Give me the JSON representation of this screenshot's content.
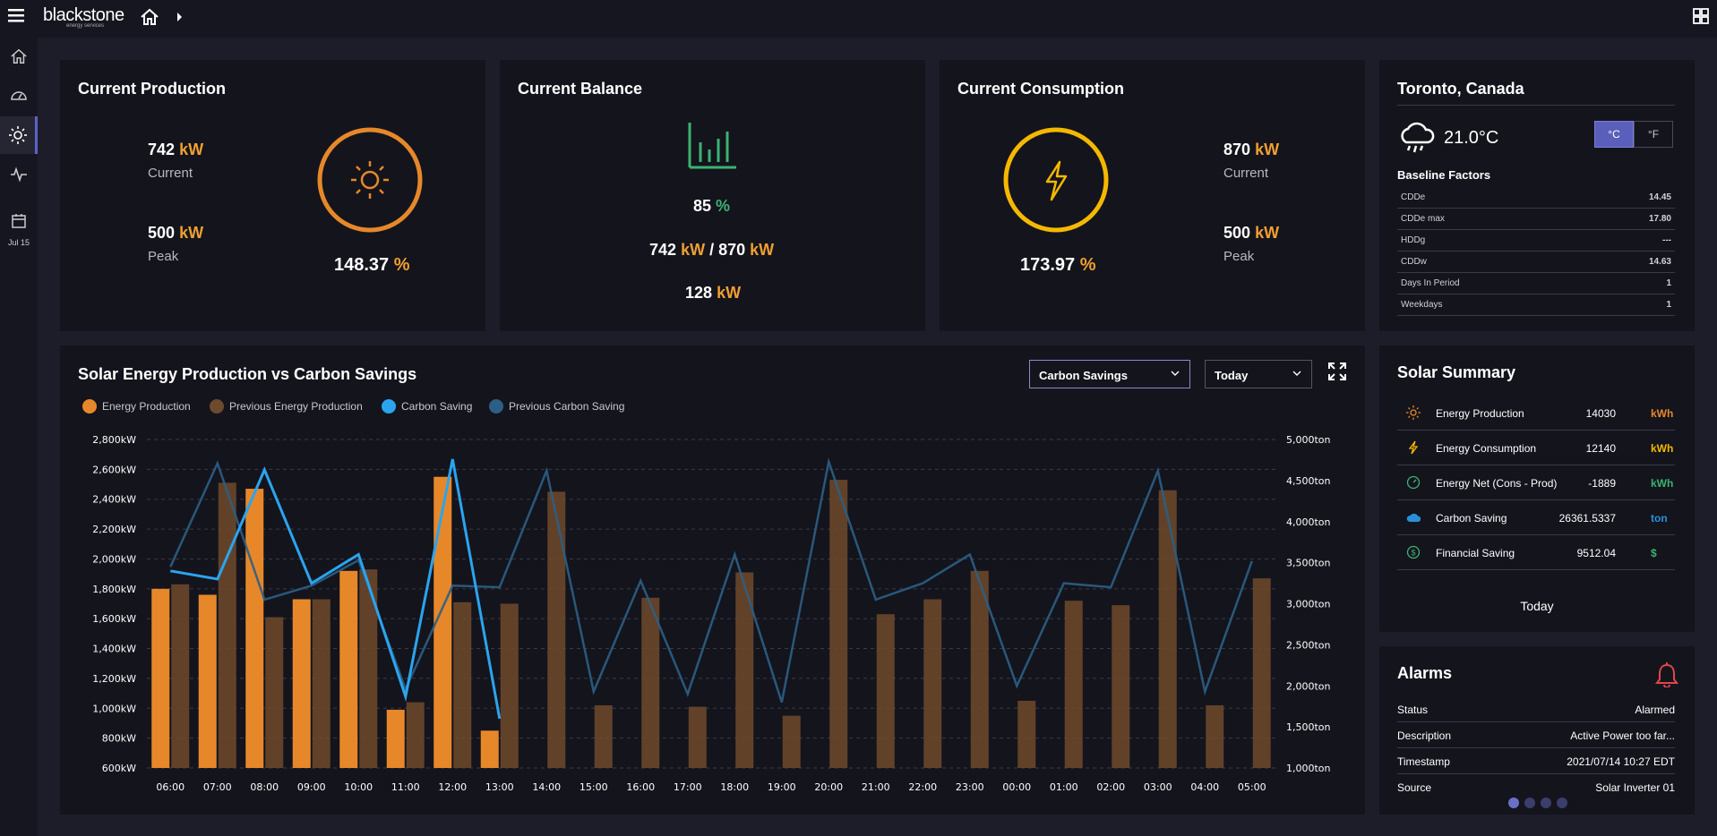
{
  "brand": {
    "name": "blackstone",
    "tagline": "energy services"
  },
  "sidebar": {
    "date_label": "Jul 15"
  },
  "production": {
    "title": "Current Production",
    "current_value": "742",
    "current_unit": "kW",
    "current_label": "Current",
    "peak_value": "500",
    "peak_unit": "kW",
    "peak_label": "Peak",
    "percent": "148.37",
    "percent_unit": "%",
    "color": "#e6882a"
  },
  "balance": {
    "title": "Current Balance",
    "percent": "85",
    "percent_unit": "%",
    "prod_value": "742",
    "prod_unit": "kW",
    "separator": "/",
    "cons_value": "870",
    "cons_unit": "kW",
    "net_value": "128",
    "net_unit": "kW",
    "color": "#3cb371"
  },
  "consumption": {
    "title": "Current Consumption",
    "current_value": "870",
    "current_unit": "kW",
    "current_label": "Current",
    "peak_value": "500",
    "peak_unit": "kW",
    "peak_label": "Peak",
    "percent": "173.97",
    "percent_unit": "%",
    "color": "#f5b800"
  },
  "weather": {
    "location": "Toronto, Canada",
    "temperature": "21.0°C",
    "unit_c": "°C",
    "unit_f": "°F",
    "baseline_title": "Baseline Factors",
    "factors": [
      {
        "label": "CDDe",
        "value": "14.45"
      },
      {
        "label": "CDDe max",
        "value": "17.80"
      },
      {
        "label": "HDDg",
        "value": "---"
      },
      {
        "label": "CDDw",
        "value": "14.63"
      },
      {
        "label": "Days In Period",
        "value": "1"
      },
      {
        "label": "Weekdays",
        "value": "1"
      }
    ]
  },
  "chart_panel": {
    "title": "Solar Energy Production vs Carbon Savings",
    "dropdown_metric": "Carbon Savings",
    "dropdown_period": "Today",
    "legend": [
      "Energy Production",
      "Previous Energy Production",
      "Carbon Saving",
      "Previous Carbon Saving"
    ]
  },
  "chart_data": {
    "type": "bar",
    "categories": [
      "06:00",
      "07:00",
      "08:00",
      "09:00",
      "10:00",
      "11:00",
      "12:00",
      "13:00",
      "14:00",
      "15:00",
      "16:00",
      "17:00",
      "18:00",
      "19:00",
      "20:00",
      "21:00",
      "22:00",
      "23:00",
      "00:00",
      "01:00",
      "02:00",
      "03:00",
      "04:00",
      "05:00"
    ],
    "y_left": {
      "ticks": [
        "600kW",
        "800kW",
        "1,000kW",
        "1,200kW",
        "1,400kW",
        "1,600kW",
        "1,800kW",
        "2,000kW",
        "2,200kW",
        "2,400kW",
        "2,600kW",
        "2,800kW"
      ],
      "min": 600,
      "max": 2800
    },
    "y_right": {
      "ticks": [
        "1,000ton",
        "1,500ton",
        "2,000ton",
        "2,500ton",
        "3,000ton",
        "3,500ton",
        "4,000ton",
        "4,500ton",
        "5,000ton"
      ],
      "min": 1000,
      "max": 5000
    },
    "series": [
      {
        "name": "Energy Production",
        "axis": "left",
        "kind": "bar",
        "color": "#e6882a",
        "values": [
          1800,
          1760,
          2470,
          1730,
          1920,
          990,
          2550,
          850,
          null,
          null,
          null,
          null,
          null,
          null,
          null,
          null,
          null,
          null,
          null,
          null,
          null,
          null,
          null,
          null
        ]
      },
      {
        "name": "Previous Energy Production",
        "axis": "left",
        "kind": "bar",
        "color": "#6e4a2c",
        "values": [
          1830,
          2510,
          1610,
          1730,
          1930,
          1040,
          1710,
          1700,
          2450,
          1020,
          1740,
          1010,
          1910,
          950,
          2530,
          1630,
          1730,
          1920,
          1050,
          1720,
          1690,
          2460,
          1020,
          1870
        ]
      },
      {
        "name": "Carbon Saving",
        "axis": "right",
        "kind": "line",
        "color": "#2ba4ef",
        "values": [
          3400,
          3300,
          4630,
          3250,
          3600,
          1870,
          4760,
          1600,
          null,
          null,
          null,
          null,
          null,
          null,
          null,
          null,
          null,
          null,
          null,
          null,
          null,
          null,
          null,
          null
        ]
      },
      {
        "name": "Previous Carbon Saving",
        "axis": "right",
        "kind": "line",
        "color": "#2b5f86",
        "values": [
          3450,
          4710,
          3050,
          3220,
          3530,
          1960,
          3220,
          3200,
          4620,
          1930,
          3280,
          1900,
          3600,
          1800,
          4730,
          3050,
          3250,
          3600,
          2000,
          3250,
          3200,
          4620,
          1930,
          3520
        ]
      }
    ],
    "grid": true
  },
  "solar_summary": {
    "title": "Solar Summary",
    "rows": [
      {
        "icon": "sun-icon",
        "label": "Energy Production",
        "value": "14030",
        "unit": "kWh",
        "unit_color": "#e6882a"
      },
      {
        "icon": "bolt-icon",
        "label": "Energy Consumption",
        "value": "12140",
        "unit": "kWh",
        "unit_color": "#f5b800"
      },
      {
        "icon": "gauge-icon",
        "label": "Energy Net (Cons - Prod)",
        "value": "-1889",
        "unit": "kWh",
        "unit_color": "#3cb371"
      },
      {
        "icon": "cloud-icon",
        "label": "Carbon Saving",
        "value": "26361.5337",
        "unit": "ton",
        "unit_color": "#2b8fd8"
      },
      {
        "icon": "dollar-icon",
        "label": "Financial Saving",
        "value": "9512.04",
        "unit": "$",
        "unit_color": "#3cb371"
      }
    ],
    "period": "Today"
  },
  "alarms": {
    "title": "Alarms",
    "rows": [
      {
        "label": "Status",
        "value": "Alarmed"
      },
      {
        "label": "Description",
        "value": "Active Power too far..."
      },
      {
        "label": "Timestamp",
        "value": "2021/07/14 10:27 EDT"
      },
      {
        "label": "Source",
        "value": "Solar Inverter 01"
      }
    ],
    "pager_count": 4,
    "bell_color": "#e04848"
  }
}
